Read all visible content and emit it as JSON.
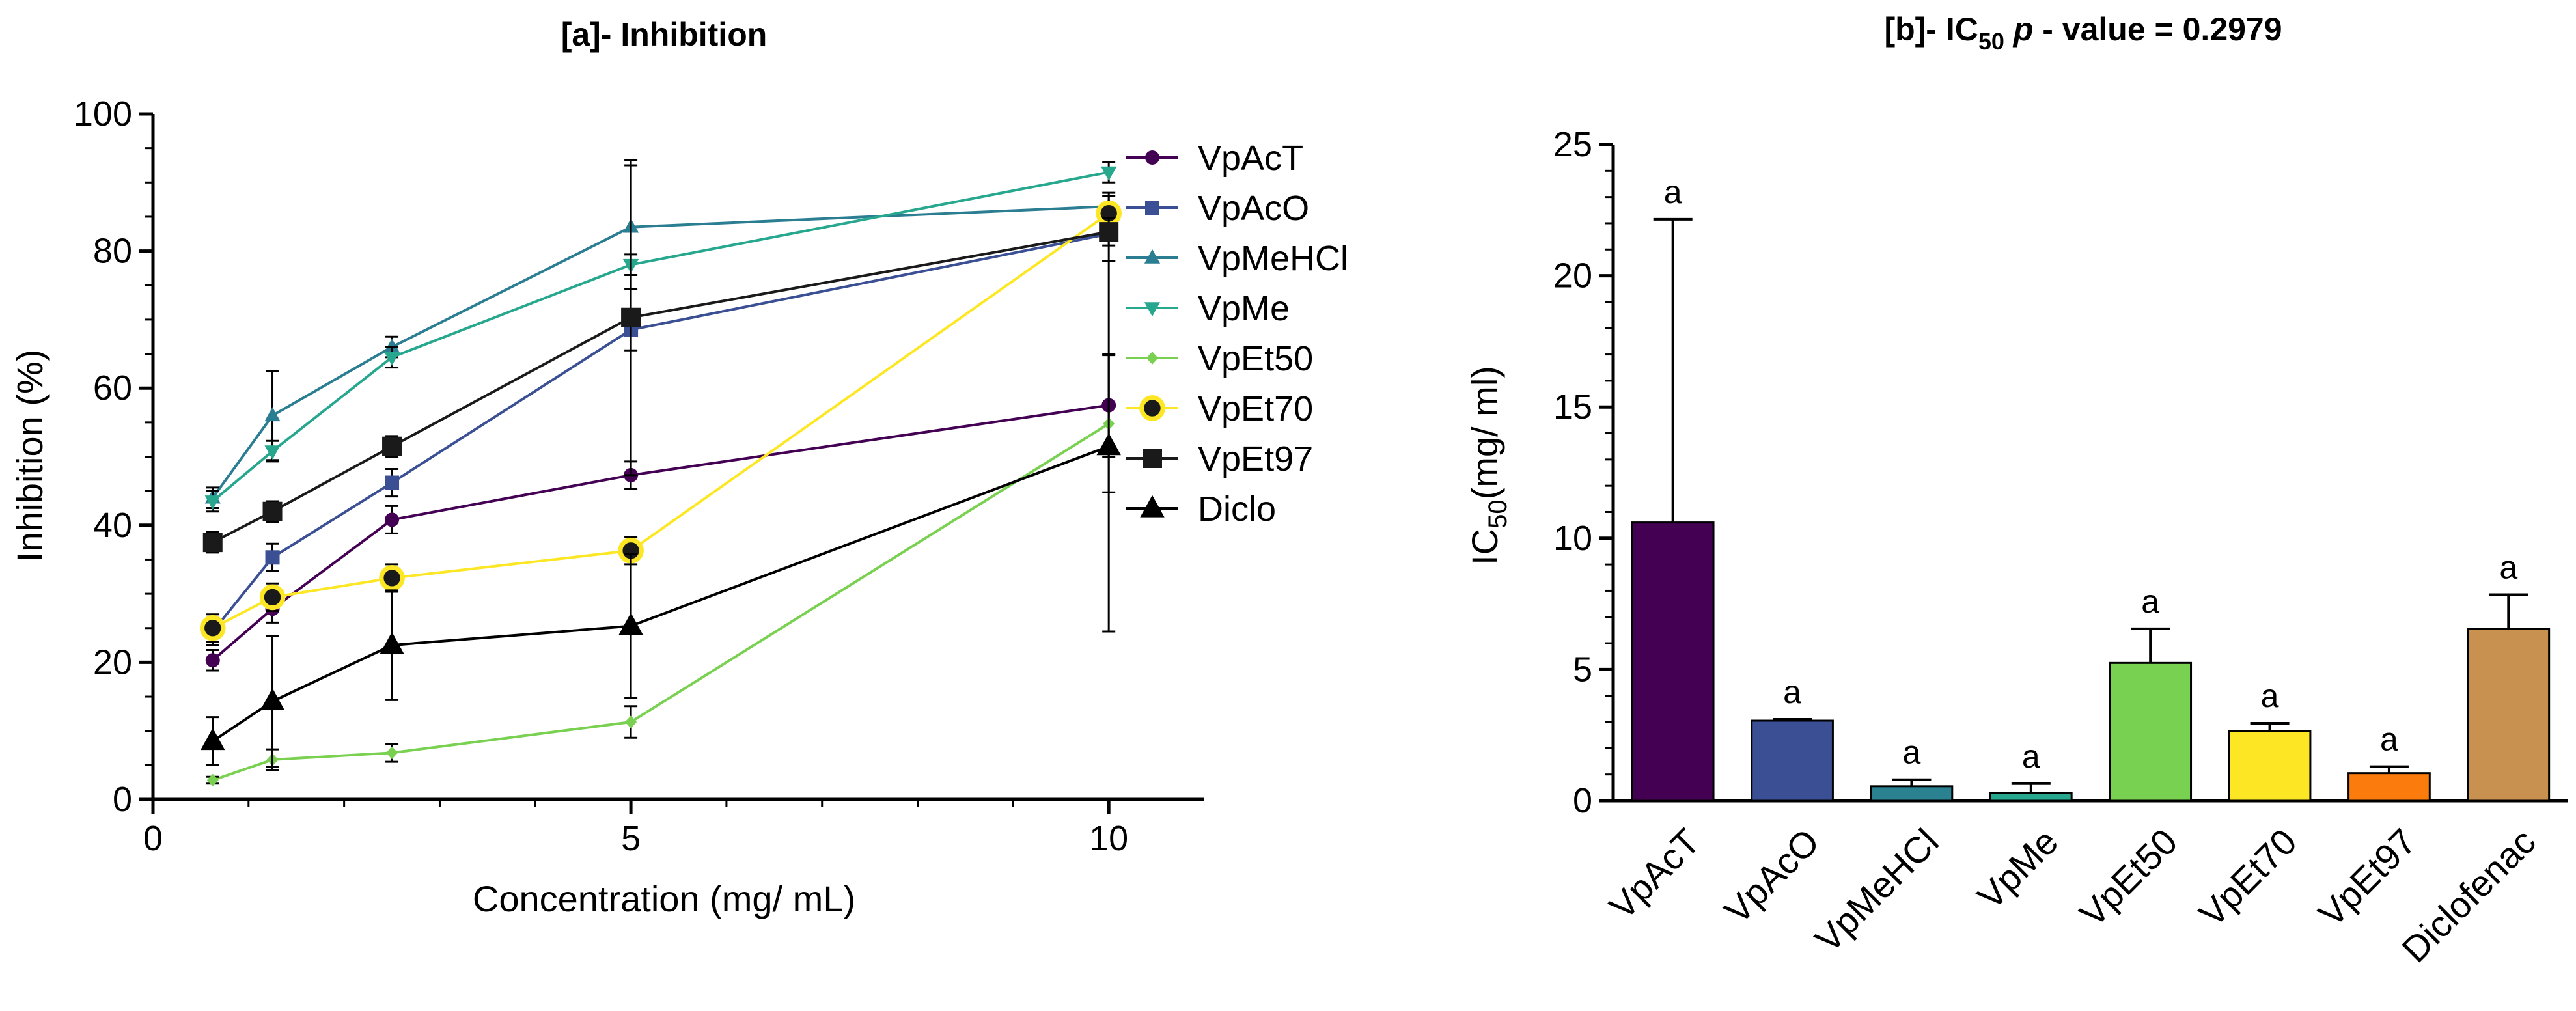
{
  "chart_data": [
    {
      "type": "line",
      "title": "[a]- Inhibition",
      "xlabel": "Concentration (mg/ mL)",
      "ylabel": "Inhibition (%)",
      "xlim": [
        0,
        11
      ],
      "ylim": [
        0,
        100
      ],
      "xticks": [
        "0",
        "5",
        "10"
      ],
      "yticks": [
        "0",
        "20",
        "40",
        "60",
        "80",
        "100"
      ],
      "x": [
        0.625,
        1.25,
        2.5,
        5,
        10
      ],
      "series": [
        {
          "name": "VpAcT",
          "color": "#440154",
          "marker": "circle",
          "values": [
            20.3,
            27.8,
            40.8,
            47.3,
            57.5
          ],
          "err": [
            1.5,
            2,
            2,
            2,
            7.5
          ]
        },
        {
          "name": "VpAcO",
          "color": "#3b4f94",
          "marker": "square",
          "values": [
            24.5,
            35.3,
            46.2,
            68.5,
            82.5
          ],
          "err": [
            2,
            2,
            2,
            3,
            4
          ]
        },
        {
          "name": "VpMeHCl",
          "color": "#2b7d92",
          "marker": "triangle-up",
          "values": [
            44,
            56,
            66,
            83.5,
            86.5
          ],
          "err": [
            1.5,
            6.5,
            1.5,
            9,
            1.5
          ]
        },
        {
          "name": "VpMe",
          "color": "#27a88e",
          "marker": "triangle-down",
          "values": [
            43.5,
            50.8,
            64.5,
            78,
            91.5
          ],
          "err": [
            1.5,
            1.5,
            1.5,
            1.5,
            1.5
          ]
        },
        {
          "name": "VpEt50",
          "color": "#7ad151",
          "marker": "diamond",
          "values": [
            2.8,
            5.8,
            6.8,
            11.3,
            54.8
          ],
          "err": [
            0.5,
            1.5,
            1.3,
            2.3,
            10
          ]
        },
        {
          "name": "VpEt70",
          "color": "#fde725",
          "marker": "circle-ring",
          "values": [
            25,
            29.5,
            32.3,
            36.3,
            85.5
          ],
          "err": [
            2,
            2,
            2,
            2,
            3
          ]
        },
        {
          "name": "VpEt97",
          "color": "#1a1a1a",
          "marker": "square",
          "values": [
            37.5,
            42,
            51.5,
            70.3,
            82.8
          ],
          "err": [
            1.5,
            1.5,
            1.5,
            23,
            2
          ]
        },
        {
          "name": "Diclo",
          "color": "#000000",
          "marker": "triangle-up",
          "values": [
            8.5,
            14.3,
            22.5,
            25.3,
            51.5
          ],
          "err": [
            3.5,
            9.5,
            8,
            10.5,
            27
          ]
        }
      ]
    },
    {
      "type": "bar",
      "title_main": "[b]- IC",
      "title_sub": "50",
      "title_p": "p",
      "title_rest": " - value = 0.2979",
      "ylabel_main": "IC",
      "ylabel_sub": "50",
      "ylabel_rest": "(mg/ ml)",
      "ylim": [
        0,
        25
      ],
      "yticks": [
        "0",
        "5",
        "10",
        "15",
        "20",
        "25"
      ],
      "categories": [
        "VpAcT",
        "VpAcO",
        "VpMeHCl",
        "VpMe",
        "VpEt50",
        "VpEt70",
        "VpEt97",
        "Diclofenac"
      ],
      "values": [
        10.6,
        3.05,
        0.55,
        0.3,
        5.25,
        2.65,
        1.05,
        6.55
      ],
      "err": [
        11.55,
        0.05,
        0.25,
        0.35,
        1.3,
        0.3,
        0.25,
        1.3
      ],
      "colors": [
        "#440154",
        "#3b4f94",
        "#2a8190",
        "#26a88f",
        "#78d151",
        "#fde725",
        "#fb7c0c",
        "#c9914f"
      ],
      "sig_labels": [
        "a",
        "a",
        "a",
        "a",
        "a",
        "a",
        "a",
        "a"
      ]
    }
  ]
}
